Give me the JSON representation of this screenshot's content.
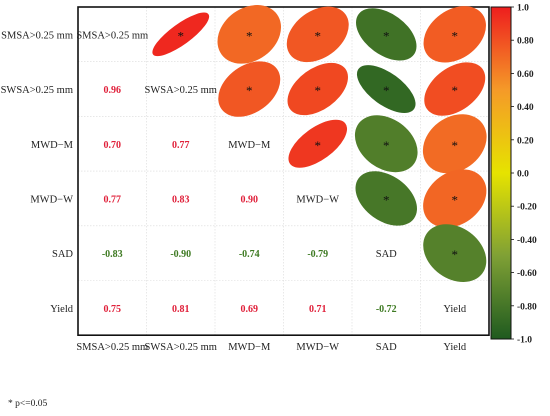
{
  "chart_data": {
    "type": "heatmap",
    "subtype": "correlation-matrix",
    "variables": [
      "SMSA>0.25 mm",
      "SWSA>0.25 mm",
      "MWD−M",
      "MWD−W",
      "SAD",
      "Yield"
    ],
    "matrix": [
      [
        1.0,
        0.96,
        0.7,
        0.77,
        -0.83,
        0.75
      ],
      [
        0.96,
        1.0,
        0.77,
        0.83,
        -0.9,
        0.81
      ],
      [
        0.7,
        0.77,
        1.0,
        0.9,
        -0.74,
        0.69
      ],
      [
        0.77,
        0.83,
        0.9,
        1.0,
        -0.79,
        0.71
      ],
      [
        -0.83,
        -0.9,
        -0.74,
        -0.79,
        1.0,
        -0.72
      ],
      [
        0.75,
        0.81,
        0.69,
        0.71,
        -0.72,
        1.0
      ]
    ],
    "value_labels": [
      [
        "",
        "",
        "",
        "",
        "",
        ""
      ],
      [
        "0.96",
        "",
        "",
        "",
        "",
        ""
      ],
      [
        "0.70",
        "0.77",
        "",
        "",
        "",
        ""
      ],
      [
        "0.77",
        "0.83",
        "0.90",
        "",
        "",
        ""
      ],
      [
        "-0.83",
        "-0.90",
        "-0.74",
        "-0.79",
        "",
        ""
      ],
      [
        "0.75",
        "0.81",
        "0.69",
        "0.71",
        "-0.72",
        ""
      ]
    ],
    "lower_triangle": "numbers",
    "upper_triangle": "ellipses",
    "significance_marker": "*",
    "significance_note": "* p<=0.05",
    "colorbar": {
      "range": [
        -1.0,
        1.0
      ],
      "ticks": [
        "1.0",
        "0.80",
        "0.60",
        "0.40",
        "0.20",
        "0.0",
        "-0.20",
        "-0.40",
        "-0.60",
        "-0.80",
        "-1.0"
      ],
      "tick_values": [
        1.0,
        0.8,
        0.6,
        0.4,
        0.2,
        0.0,
        -0.2,
        -0.4,
        -0.6,
        -0.8,
        -1.0
      ],
      "colors": {
        "neg": "#1f5a1f",
        "mid": "#e6e300",
        "pos": "#ee1e1e"
      }
    },
    "grid": true,
    "legend": "right"
  }
}
